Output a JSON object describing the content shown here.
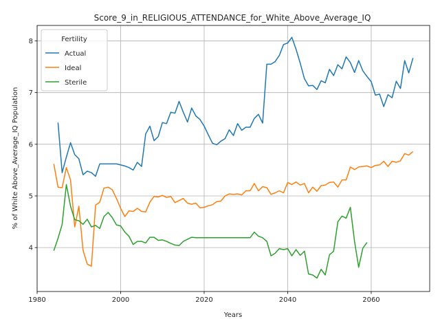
{
  "chart_data": {
    "type": "line",
    "title": "Score_9_in_RELIGIOUS_ATTENDANCE_for_White_Above_Average_IQ",
    "xlabel": "Years",
    "ylabel": "% of White Above_Average_IQ Population",
    "xlim": [
      1980,
      2074
    ],
    "ylim": [
      3.15,
      8.3
    ],
    "xticks": [
      1980,
      2000,
      2020,
      2040,
      2060
    ],
    "yticks": [
      4,
      5,
      6,
      7,
      8
    ],
    "grid": true,
    "legend": {
      "title": "Fertility",
      "placement": "top-left"
    },
    "series": [
      {
        "name": "Actual",
        "color": "#1f77b4",
        "x": [
          1985,
          1986,
          1987,
          1988,
          1989,
          1990,
          1991,
          1992,
          1993,
          1994,
          1995,
          1996,
          1997,
          1998,
          1999,
          2000,
          2001,
          2002,
          2003,
          2004,
          2005,
          2006,
          2007,
          2008,
          2009,
          2010,
          2011,
          2012,
          2013,
          2014,
          2015,
          2016,
          2017,
          2018,
          2019,
          2020,
          2021,
          2022,
          2023,
          2024,
          2025,
          2026,
          2027,
          2028,
          2029,
          2030,
          2031,
          2032,
          2033,
          2034,
          2035,
          2036,
          2037,
          2038,
          2039,
          2040,
          2041,
          2042,
          2043,
          2044,
          2045,
          2046,
          2047,
          2048,
          2049,
          2050,
          2051,
          2052,
          2053,
          2054,
          2055,
          2056,
          2057,
          2058,
          2059,
          2060,
          2061,
          2062,
          2063,
          2064,
          2065,
          2066,
          2067,
          2068,
          2069,
          2070
        ],
        "values": [
          6.42,
          5.45,
          5.75,
          6.03,
          5.8,
          5.72,
          5.41,
          5.48,
          5.45,
          5.38,
          5.62,
          5.62,
          5.62,
          5.62,
          5.62,
          5.6,
          5.58,
          5.55,
          5.5,
          5.65,
          5.57,
          6.2,
          6.35,
          6.07,
          6.15,
          6.42,
          6.4,
          6.62,
          6.6,
          6.83,
          6.62,
          6.43,
          6.7,
          6.55,
          6.48,
          6.35,
          6.18,
          6.02,
          5.99,
          6.06,
          6.11,
          6.28,
          6.17,
          6.4,
          6.27,
          6.33,
          6.33,
          6.5,
          6.58,
          6.41,
          7.55,
          7.55,
          7.6,
          7.72,
          7.93,
          7.96,
          8.07,
          7.84,
          7.57,
          7.27,
          7.13,
          7.14,
          7.06,
          7.23,
          7.19,
          7.45,
          7.33,
          7.54,
          7.46,
          7.69,
          7.58,
          7.39,
          7.62,
          7.42,
          7.31,
          7.21,
          6.95,
          6.97,
          6.73,
          6.96,
          6.9,
          7.22,
          7.08,
          7.62,
          7.38,
          7.67
        ]
      },
      {
        "name": "Ideal",
        "color": "#ff7f0e",
        "x": [
          1984,
          1985,
          1986,
          1987,
          1988,
          1989,
          1990,
          1991,
          1992,
          1993,
          1994,
          1995,
          1996,
          1997,
          1998,
          1999,
          2000,
          2001,
          2002,
          2003,
          2004,
          2005,
          2006,
          2007,
          2008,
          2009,
          2010,
          2011,
          2012,
          2013,
          2014,
          2015,
          2016,
          2017,
          2018,
          2019,
          2020,
          2021,
          2022,
          2023,
          2024,
          2025,
          2026,
          2027,
          2028,
          2029,
          2030,
          2031,
          2032,
          2033,
          2034,
          2035,
          2036,
          2037,
          2038,
          2039,
          2040,
          2041,
          2042,
          2043,
          2044,
          2045,
          2046,
          2047,
          2048,
          2049,
          2050,
          2051,
          2052,
          2053,
          2054,
          2055,
          2056,
          2057,
          2058,
          2059,
          2060,
          2061,
          2062,
          2063,
          2064,
          2065,
          2066,
          2067,
          2068,
          2069,
          2070
        ],
        "values": [
          5.62,
          5.17,
          5.16,
          5.55,
          5.31,
          4.4,
          4.8,
          3.95,
          3.68,
          3.64,
          4.82,
          4.88,
          5.15,
          5.17,
          5.12,
          4.95,
          4.76,
          4.6,
          4.71,
          4.7,
          4.76,
          4.7,
          4.69,
          4.88,
          4.99,
          4.98,
          5.01,
          4.97,
          4.99,
          4.87,
          4.91,
          4.95,
          4.86,
          4.84,
          4.86,
          4.77,
          4.78,
          4.81,
          4.83,
          4.89,
          4.9,
          5.0,
          5.04,
          5.03,
          5.04,
          5.02,
          5.1,
          5.1,
          5.24,
          5.1,
          5.18,
          5.16,
          5.03,
          5.06,
          5.1,
          5.06,
          5.26,
          5.22,
          5.27,
          5.21,
          5.24,
          5.06,
          5.17,
          5.09,
          5.2,
          5.21,
          5.26,
          5.27,
          5.17,
          5.31,
          5.31,
          5.56,
          5.51,
          5.56,
          5.57,
          5.58,
          5.55,
          5.59,
          5.6,
          5.67,
          5.57,
          5.67,
          5.65,
          5.68,
          5.82,
          5.79,
          5.86
        ]
      },
      {
        "name": "Sterile",
        "color": "#2ca02c",
        "x": [
          1984,
          1985,
          1986,
          1987,
          1988,
          1989,
          1990,
          1991,
          1992,
          1993,
          1994,
          1995,
          1996,
          1997,
          1998,
          1999,
          2000,
          2001,
          2002,
          2003,
          2004,
          2005,
          2006,
          2007,
          2008,
          2009,
          2010,
          2011,
          2012,
          2013,
          2014,
          2015,
          2016,
          2017,
          2018,
          2019,
          2020,
          2021,
          2022,
          2023,
          2024,
          2025,
          2026,
          2027,
          2028,
          2029,
          2030,
          2031,
          2032,
          2033,
          2034,
          2035,
          2036,
          2037,
          2038,
          2039,
          2040,
          2041,
          2042,
          2043,
          2044,
          2045,
          2046,
          2047,
          2048,
          2049,
          2050,
          2051,
          2052,
          2053,
          2054,
          2055,
          2056,
          2057,
          2058,
          2059
        ],
        "values": [
          3.94,
          4.18,
          4.45,
          5.22,
          4.8,
          4.54,
          4.52,
          4.45,
          4.55,
          4.4,
          4.43,
          4.37,
          4.6,
          4.68,
          4.58,
          4.44,
          4.42,
          4.3,
          4.22,
          4.06,
          4.12,
          4.12,
          4.09,
          4.2,
          4.2,
          4.14,
          4.15,
          4.12,
          4.08,
          4.05,
          4.04,
          4.12,
          4.16,
          4.2,
          4.19,
          4.19,
          4.19,
          4.19,
          4.19,
          4.19,
          4.19,
          4.19,
          4.19,
          4.19,
          4.19,
          4.19,
          4.19,
          4.19,
          4.3,
          4.22,
          4.19,
          4.12,
          3.84,
          3.89,
          3.98,
          3.96,
          3.98,
          3.84,
          3.96,
          3.85,
          3.93,
          3.49,
          3.47,
          3.41,
          3.58,
          3.47,
          3.86,
          3.93,
          4.5,
          4.61,
          4.57,
          4.78,
          4.12,
          3.62,
          3.99,
          4.1
        ]
      }
    ]
  }
}
